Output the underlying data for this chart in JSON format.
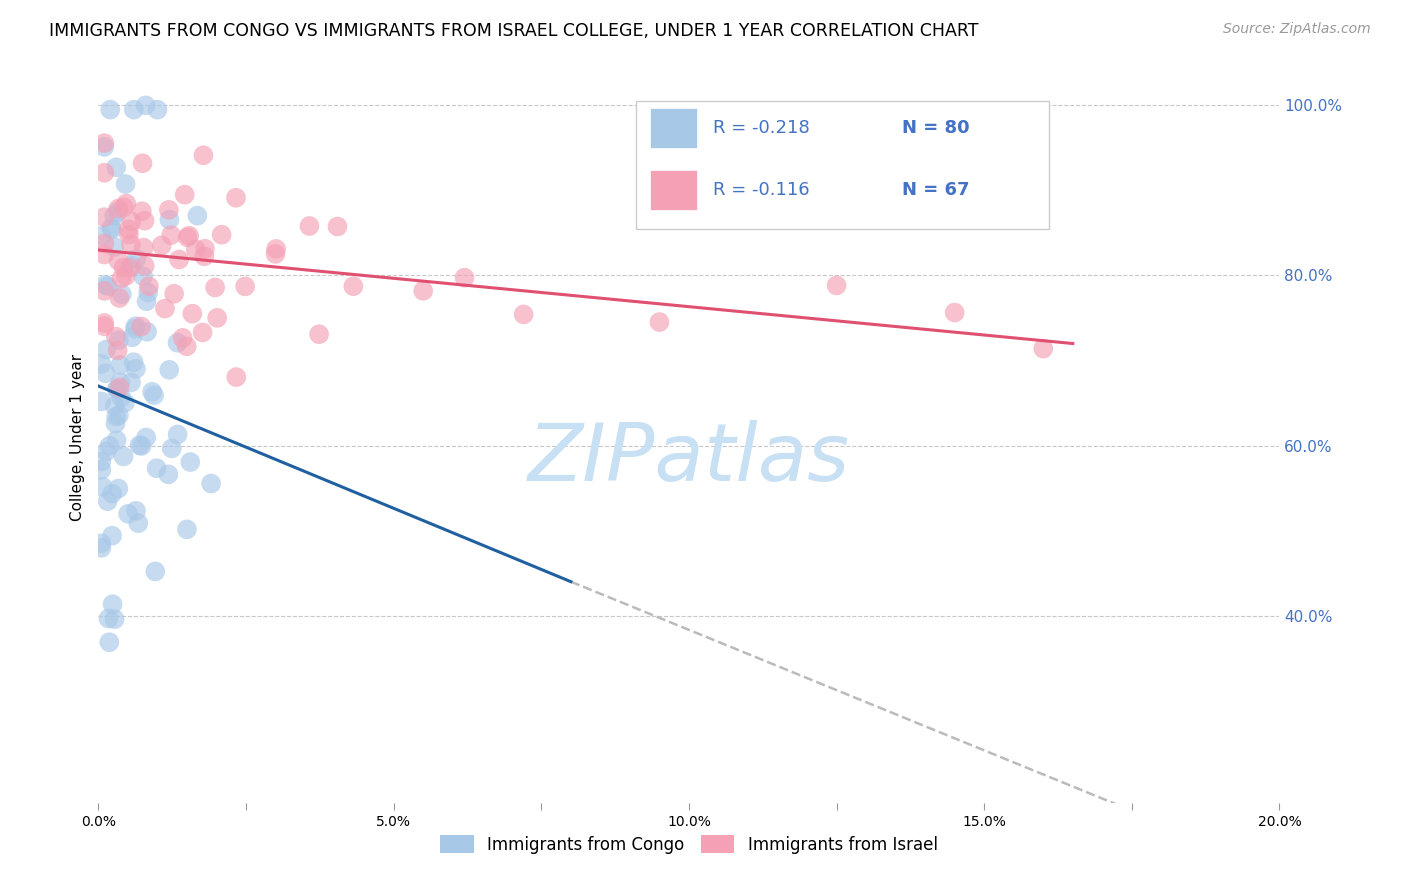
{
  "title": "IMMIGRANTS FROM CONGO VS IMMIGRANTS FROM ISRAEL COLLEGE, UNDER 1 YEAR CORRELATION CHART",
  "source": "Source: ZipAtlas.com",
  "ylabel": "College, Under 1 year",
  "legend_labels": [
    "Immigrants from Congo",
    "Immigrants from Israel"
  ],
  "r_congo": -0.218,
  "n_congo": 80,
  "r_israel": -0.116,
  "n_israel": 67,
  "xmin": 0.0,
  "xmax": 0.2,
  "ymin": 0.18,
  "ymax": 1.04,
  "right_yticks": [
    1.0,
    0.8,
    0.6,
    0.4
  ],
  "right_ytick_labels": [
    "100.0%",
    "80.0%",
    "60.0%",
    "40.0%"
  ],
  "color_congo": "#A8C8E8",
  "color_israel": "#F4A0B5",
  "line_color_congo": "#2060A0",
  "line_color_israel": "#E05070",
  "background_color": "#FFFFFF",
  "grid_color": "#C8C8C8",
  "watermark_text": "ZIPatlas",
  "watermark_color": "#C8E0F4",
  "title_fontsize": 12.5,
  "source_fontsize": 10,
  "axis_label_fontsize": 11,
  "tick_fontsize": 10,
  "legend_fontsize": 13,
  "right_tick_color": "#4472C4",
  "legend_text_color": "#4472C4",
  "legend_r_color": "#4472C4"
}
